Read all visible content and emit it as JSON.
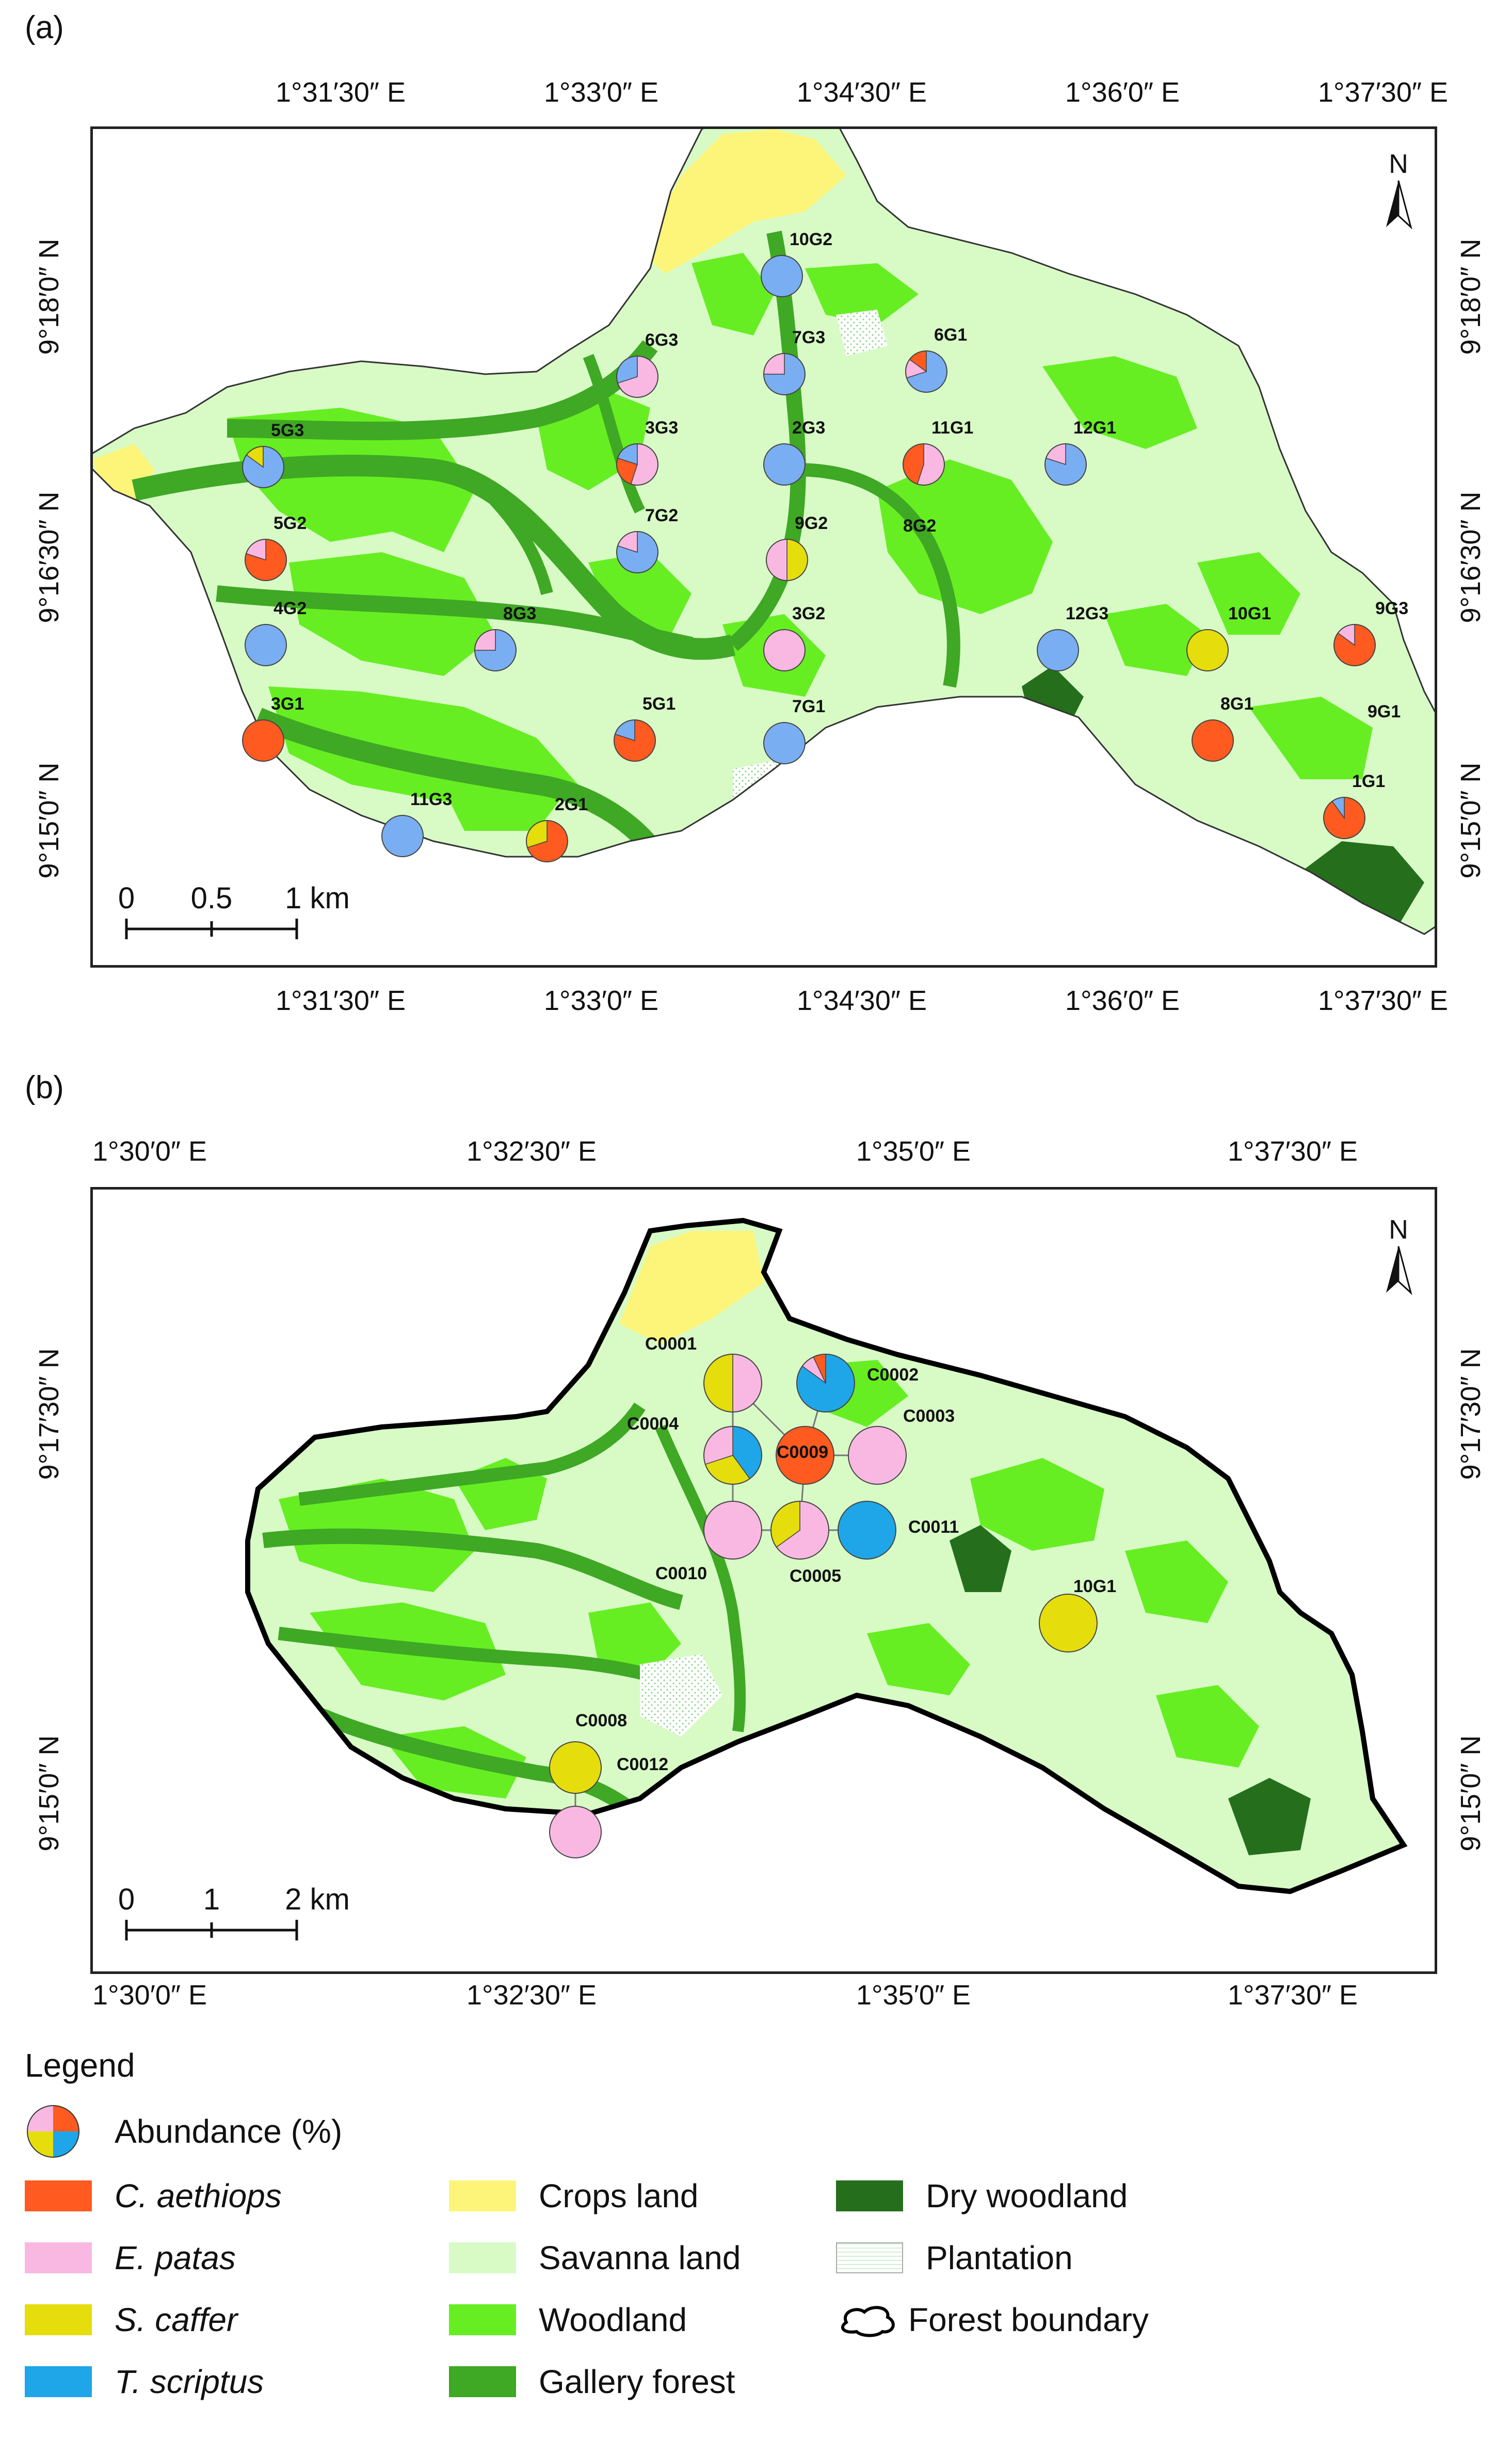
{
  "panels": [
    {
      "label": "(a)",
      "top_ticks": [
        "1°31′30″ E",
        "1°33′0″ E",
        "1°34′30″ E",
        "1°36′0″ E",
        "1°37′30″ E"
      ],
      "bottom_ticks": [
        "1°31′30″ E",
        "1°33′0″ E",
        "1°34′30″ E",
        "1°36′0″ E",
        "1°37′30″ E"
      ],
      "left_ticks": [
        "9°18′0″ N",
        "9°16′30″ N",
        "9°15′0″ N"
      ],
      "right_ticks": [
        "9°18′0″ N",
        "9°16′30″ N",
        "9°15′0″ N"
      ],
      "north": "N",
      "scale": {
        "labels": [
          "0",
          "0.5",
          "1 km"
        ]
      },
      "sites": [
        {
          "id": "10G2",
          "pie": [
            {
              "sp": "T. scriptus",
              "v": 100
            }
          ]
        },
        {
          "id": "6G3",
          "pie": [
            {
              "sp": "E. patas",
              "v": 70
            },
            {
              "sp": "T. scriptus",
              "v": 30
            }
          ]
        },
        {
          "id": "7G3",
          "pie": [
            {
              "sp": "T. scriptus",
              "v": 75
            },
            {
              "sp": "E. patas",
              "v": 25
            }
          ]
        },
        {
          "id": "6G1",
          "pie": [
            {
              "sp": "T. scriptus",
              "v": 70
            },
            {
              "sp": "E. patas",
              "v": 15
            },
            {
              "sp": "C. aethiops",
              "v": 15
            }
          ]
        },
        {
          "id": "5G3",
          "pie": [
            {
              "sp": "T. scriptus",
              "v": 85
            },
            {
              "sp": "S. caffer",
              "v": 15
            }
          ]
        },
        {
          "id": "3G3",
          "pie": [
            {
              "sp": "E. patas",
              "v": 55
            },
            {
              "sp": "C. aethiops",
              "v": 25
            },
            {
              "sp": "T. scriptus",
              "v": 20
            }
          ]
        },
        {
          "id": "2G3",
          "pie": [
            {
              "sp": "T. scriptus",
              "v": 100
            }
          ]
        },
        {
          "id": "11G1",
          "pie": [
            {
              "sp": "E. patas",
              "v": 55
            },
            {
              "sp": "C. aethiops",
              "v": 45
            }
          ]
        },
        {
          "id": "12G1",
          "pie": [
            {
              "sp": "T. scriptus",
              "v": 80
            },
            {
              "sp": "E. patas",
              "v": 20
            }
          ]
        },
        {
          "id": "5G2",
          "pie": [
            {
              "sp": "C. aethiops",
              "v": 80
            },
            {
              "sp": "E. patas",
              "v": 20
            }
          ]
        },
        {
          "id": "7G2",
          "pie": [
            {
              "sp": "T. scriptus",
              "v": 80
            },
            {
              "sp": "E. patas",
              "v": 20
            }
          ]
        },
        {
          "id": "9G2",
          "pie": [
            {
              "sp": "S. caffer",
              "v": 50
            },
            {
              "sp": "E. patas",
              "v": 50
            }
          ]
        },
        {
          "id": "8G2",
          "pie": []
        },
        {
          "id": "4G2",
          "pie": [
            {
              "sp": "T. scriptus",
              "v": 100
            }
          ]
        },
        {
          "id": "8G3",
          "pie": [
            {
              "sp": "T. scriptus",
              "v": 75
            },
            {
              "sp": "E. patas",
              "v": 25
            }
          ]
        },
        {
          "id": "3G2",
          "pie": [
            {
              "sp": "E. patas",
              "v": 100
            }
          ]
        },
        {
          "id": "12G3",
          "pie": [
            {
              "sp": "T. scriptus",
              "v": 100
            }
          ]
        },
        {
          "id": "10G1",
          "pie": [
            {
              "sp": "S. caffer",
              "v": 100
            }
          ]
        },
        {
          "id": "9G3",
          "pie": [
            {
              "sp": "C. aethiops",
              "v": 85
            },
            {
              "sp": "E. patas",
              "v": 15
            }
          ]
        },
        {
          "id": "3G1",
          "pie": [
            {
              "sp": "C. aethiops",
              "v": 100
            }
          ]
        },
        {
          "id": "5G1",
          "pie": [
            {
              "sp": "C. aethiops",
              "v": 80
            },
            {
              "sp": "T. scriptus",
              "v": 20
            }
          ]
        },
        {
          "id": "7G1",
          "pie": [
            {
              "sp": "T. scriptus",
              "v": 100
            }
          ]
        },
        {
          "id": "8G1",
          "pie": [
            {
              "sp": "C. aethiops",
              "v": 100
            }
          ]
        },
        {
          "id": "9G1",
          "pie": []
        },
        {
          "id": "11G3",
          "pie": [
            {
              "sp": "T. scriptus",
              "v": 100
            }
          ]
        },
        {
          "id": "2G1",
          "pie": [
            {
              "sp": "C. aethiops",
              "v": 70
            },
            {
              "sp": "S. caffer",
              "v": 30
            }
          ]
        },
        {
          "id": "1G1",
          "pie": [
            {
              "sp": "C. aethiops",
              "v": 90
            },
            {
              "sp": "T. scriptus",
              "v": 10
            }
          ]
        }
      ]
    },
    {
      "label": "(b)",
      "top_ticks": [
        "1°30′0″ E",
        "1°32′30″ E",
        "1°35′0″ E",
        "1°37′30″ E"
      ],
      "bottom_ticks": [
        "1°30′0″ E",
        "1°32′30″ E",
        "1°35′0″ E",
        "1°37′30″ E"
      ],
      "left_ticks": [
        "9°17′30″ N",
        "9°15′0″ N"
      ],
      "right_ticks": [
        "9°17′30″ N",
        "9°15′0″ N"
      ],
      "north": "N",
      "scale": {
        "labels": [
          "0",
          "1",
          "2 km"
        ]
      },
      "sites": [
        {
          "id": "C0001",
          "pie": [
            {
              "sp": "E. patas",
              "v": 50
            },
            {
              "sp": "S. caffer",
              "v": 50
            }
          ]
        },
        {
          "id": "C0002",
          "pie": [
            {
              "sp": "T. scriptus",
              "v": 85
            },
            {
              "sp": "E. patas",
              "v": 8
            },
            {
              "sp": "C. aethiops",
              "v": 7
            }
          ]
        },
        {
          "id": "C0004",
          "pie": [
            {
              "sp": "T. scriptus",
              "v": 40
            },
            {
              "sp": "S. caffer",
              "v": 30
            },
            {
              "sp": "E. patas",
              "v": 30
            }
          ]
        },
        {
          "id": "C0009",
          "pie": [
            {
              "sp": "C. aethiops",
              "v": 100
            }
          ]
        },
        {
          "id": "C0003",
          "pie": [
            {
              "sp": "E. patas",
              "v": 100
            }
          ]
        },
        {
          "id": "C0010",
          "pie": [
            {
              "sp": "E. patas",
              "v": 100
            }
          ]
        },
        {
          "id": "C0005",
          "pie": [
            {
              "sp": "E. patas",
              "v": 65
            },
            {
              "sp": "S. caffer",
              "v": 35
            }
          ]
        },
        {
          "id": "C0011",
          "pie": [
            {
              "sp": "T. scriptus",
              "v": 100
            }
          ]
        },
        {
          "id": "10G1",
          "pie": [
            {
              "sp": "S. caffer",
              "v": 100
            }
          ]
        },
        {
          "id": "C0008",
          "pie": [
            {
              "sp": "S. caffer",
              "v": 100
            }
          ]
        },
        {
          "id": "C0012",
          "pie": [
            {
              "sp": "E. patas",
              "v": 100
            }
          ]
        }
      ]
    }
  ],
  "legend": {
    "title": "Legend",
    "abundance_label": "Abundance (%)",
    "species": [
      {
        "name": "C. aethiops",
        "color": "#ff5a1f"
      },
      {
        "name": "E. patas",
        "color": "#f9b8e2"
      },
      {
        "name": "S. caffer",
        "color": "#e6dd0c"
      },
      {
        "name": "T. scriptus",
        "color": "#1ea6e8"
      }
    ],
    "landcover": [
      {
        "name": "Crops land",
        "color": "#fdf57a"
      },
      {
        "name": "Savanna land",
        "color": "#d8fbc6"
      },
      {
        "name": "Woodland",
        "color": "#66ee22"
      },
      {
        "name": "Gallery forest",
        "color": "#3fa824"
      },
      {
        "name": "Dry woodland",
        "color": "#256f1c"
      },
      {
        "name": "Plantation",
        "color": "#ffffff"
      },
      {
        "name": "Forest boundary",
        "color": "#000000"
      }
    ],
    "a_site_color": "#79aef2"
  }
}
